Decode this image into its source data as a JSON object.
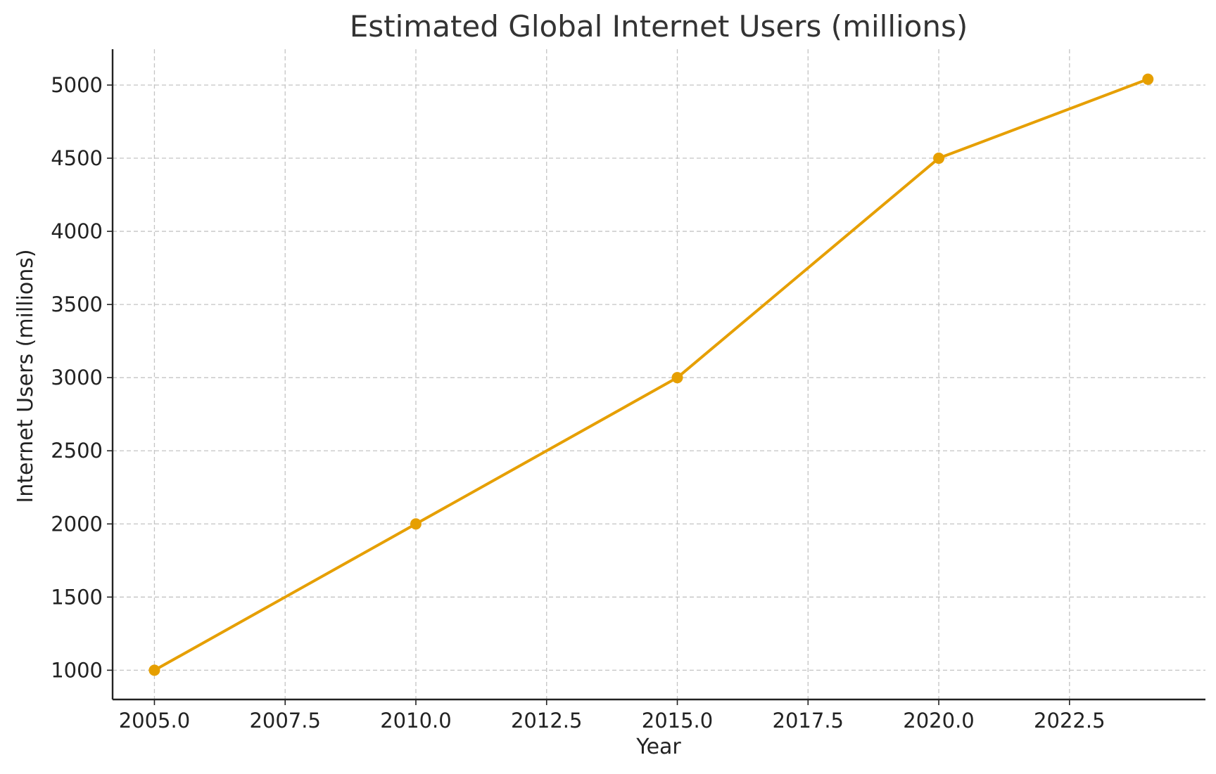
{
  "chart_data": {
    "type": "line",
    "title": "Estimated Global Internet Users (millions)",
    "xlabel": "Year",
    "ylabel": "Internet Users (millions)",
    "xlim": [
      2004.2,
      2025.1
    ],
    "ylim": [
      800,
      5245
    ],
    "x_ticks": [
      2005.0,
      2007.5,
      2010.0,
      2012.5,
      2015.0,
      2017.5,
      2020.0,
      2022.5
    ],
    "x_tick_labels": [
      "2005.0",
      "2007.5",
      "2010.0",
      "2012.5",
      "2015.0",
      "2017.5",
      "2020.0",
      "2022.5"
    ],
    "y_ticks": [
      1000,
      1500,
      2000,
      2500,
      3000,
      3500,
      4000,
      4500,
      5000
    ],
    "y_tick_labels": [
      "1000",
      "1500",
      "2000",
      "2500",
      "3000",
      "3500",
      "4000",
      "4500",
      "5000"
    ],
    "grid": true,
    "marker": "circle",
    "series": [
      {
        "x": [
          2005,
          2010,
          2015,
          2020,
          2024
        ],
        "y": [
          1000,
          2000,
          3000,
          4500,
          5040
        ],
        "color": "#E69F00"
      }
    ]
  }
}
